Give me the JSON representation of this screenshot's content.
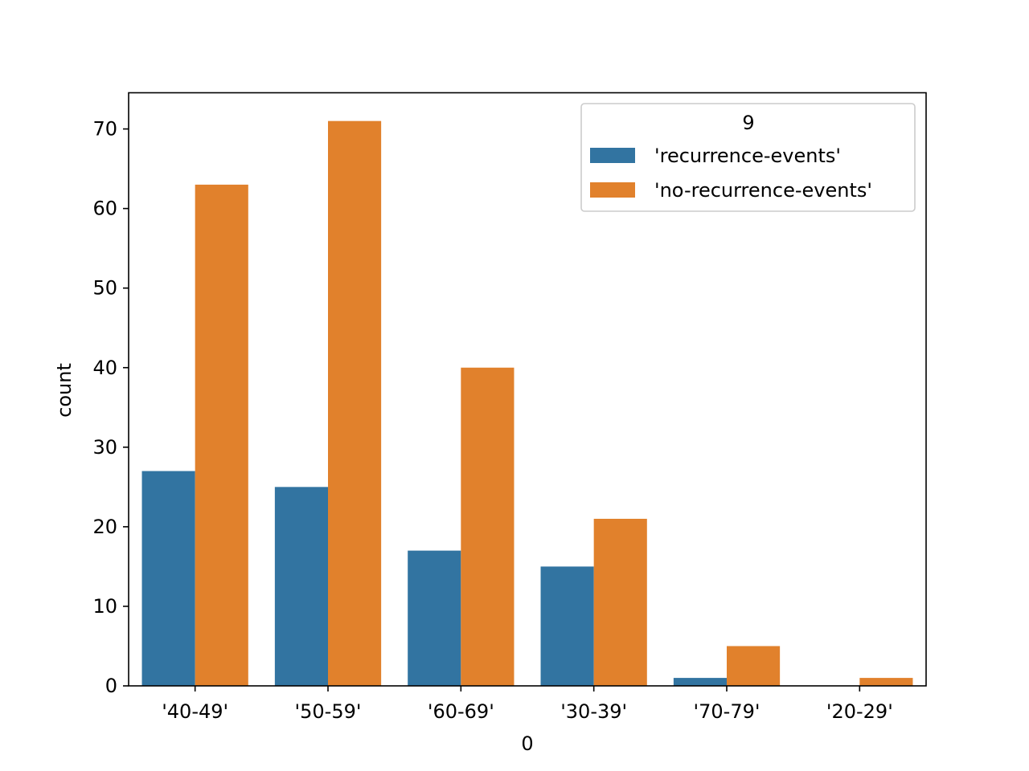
{
  "chart_data": {
    "type": "bar",
    "title": "",
    "xlabel": "0",
    "ylabel": "count",
    "categories": [
      "'40-49'",
      "'50-59'",
      "'60-69'",
      "'30-39'",
      "'70-79'",
      "'20-29'"
    ],
    "series": [
      {
        "name": "'recurrence-events'",
        "color": "#3274a1",
        "values": [
          27,
          25,
          17,
          15,
          1,
          0
        ]
      },
      {
        "name": "'no-recurrence-events'",
        "color": "#e1812c",
        "values": [
          63,
          71,
          40,
          21,
          5,
          1
        ]
      }
    ],
    "ylim": [
      0,
      74.55
    ],
    "yticks": [
      0,
      10,
      20,
      30,
      40,
      50,
      60,
      70
    ],
    "grid": false,
    "legend": {
      "title": "9",
      "placement": "top-right"
    }
  }
}
